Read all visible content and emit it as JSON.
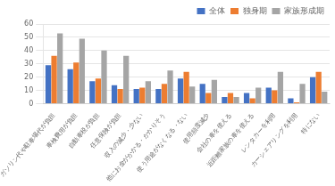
{
  "chart_data": {
    "type": "bar",
    "categories": [
      "ガソリン代や駐車場代が負担",
      "車検費用が負担",
      "自動車税が負担",
      "任意保険が負担",
      "収入の減少・少ない",
      "他にお金がかかる・かかりそう",
      "使う用途がなくなる・ない",
      "使用頻度減少",
      "会社の車を使える",
      "近距離家族の車を使える",
      "レンタカーを利用",
      "カーシェアリングを利用",
      "特にない"
    ],
    "series": [
      {
        "name": "全体",
        "color": "#4472c4",
        "values": [
          29,
          26,
          17,
          14,
          11,
          11,
          19,
          15,
          5,
          8,
          12,
          4,
          20
        ]
      },
      {
        "name": "独身期",
        "color": "#ed7d31",
        "values": [
          36,
          31,
          19,
          11,
          12,
          15,
          24,
          8,
          8,
          4,
          10,
          1,
          24
        ]
      },
      {
        "name": "家族形成期",
        "color": "#a5a5a5",
        "values": [
          53,
          49,
          40,
          36,
          17,
          25,
          13,
          18,
          5,
          12,
          24,
          15,
          9
        ]
      }
    ],
    "ylim": [
      0,
      60
    ],
    "yticks": [
      0,
      10,
      20,
      30,
      40,
      50,
      60
    ],
    "grid": true,
    "legend": "upper right"
  }
}
